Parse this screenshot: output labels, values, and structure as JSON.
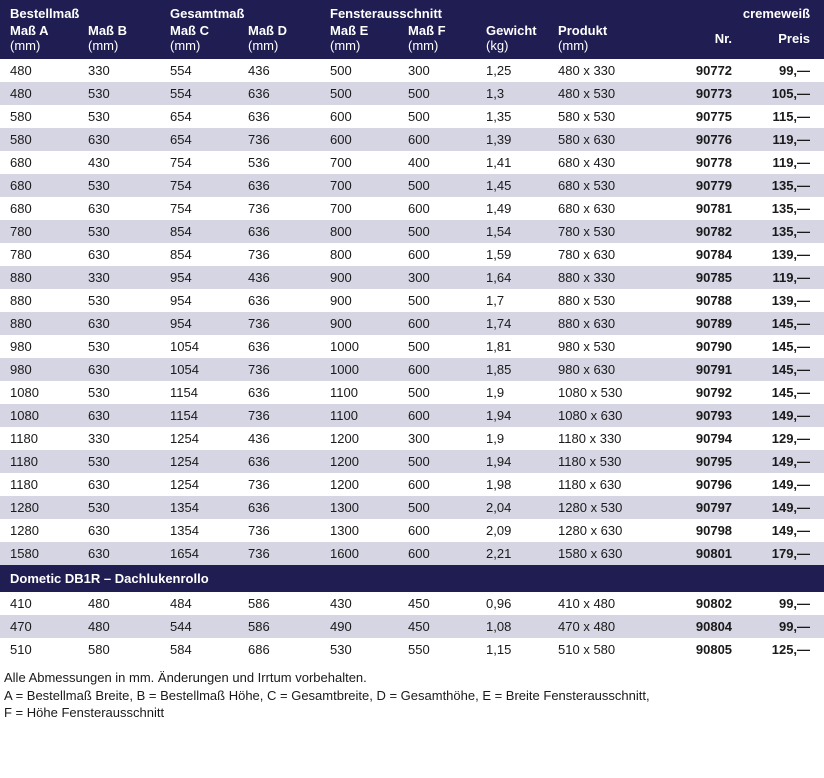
{
  "colors": {
    "header_bg": "#1f1d52",
    "header_text": "#ffffff",
    "row_odd": "#ffffff",
    "row_even": "#d6d5e3",
    "text": "#1a1a1a"
  },
  "groupHeaders": [
    {
      "label": "Bestellmaß",
      "span": 2
    },
    {
      "label": "Gesamtmaß",
      "span": 2
    },
    {
      "label": "Fensterausschnitt",
      "span": 2
    },
    {
      "label": "",
      "span": 2
    },
    {
      "label": "cremeweiß",
      "span": 2,
      "align": "right"
    }
  ],
  "columns": [
    {
      "label": "Maß A",
      "unit": "(mm)",
      "cls": "c-a"
    },
    {
      "label": "Maß B",
      "unit": "(mm)",
      "cls": "c-b"
    },
    {
      "label": "Maß C",
      "unit": "(mm)",
      "cls": "c-c"
    },
    {
      "label": "Maß D",
      "unit": "(mm)",
      "cls": "c-d"
    },
    {
      "label": "Maß E",
      "unit": "(mm)",
      "cls": "c-e"
    },
    {
      "label": "Maß F",
      "unit": "(mm)",
      "cls": "c-f"
    },
    {
      "label": "Gewicht",
      "unit": "(kg)",
      "cls": "c-g"
    },
    {
      "label": "Produkt",
      "unit": "(mm)",
      "cls": "c-p"
    },
    {
      "label": "Nr.",
      "unit": "",
      "cls": "c-nr",
      "align": "right"
    },
    {
      "label": "Preis",
      "unit": "",
      "cls": "c-pr",
      "align": "right"
    }
  ],
  "rows": [
    [
      "480",
      "330",
      "554",
      "436",
      "500",
      "300",
      "1,25",
      "480 x 330",
      "90772",
      "99,—"
    ],
    [
      "480",
      "530",
      "554",
      "636",
      "500",
      "500",
      "1,3",
      "480 x 530",
      "90773",
      "105,—"
    ],
    [
      "580",
      "530",
      "654",
      "636",
      "600",
      "500",
      "1,35",
      "580 x 530",
      "90775",
      "115,—"
    ],
    [
      "580",
      "630",
      "654",
      "736",
      "600",
      "600",
      "1,39",
      "580 x 630",
      "90776",
      "119,—"
    ],
    [
      "680",
      "430",
      "754",
      "536",
      "700",
      "400",
      "1,41",
      "680 x 430",
      "90778",
      "119,—"
    ],
    [
      "680",
      "530",
      "754",
      "636",
      "700",
      "500",
      "1,45",
      "680 x 530",
      "90779",
      "135,—"
    ],
    [
      "680",
      "630",
      "754",
      "736",
      "700",
      "600",
      "1,49",
      "680 x 630",
      "90781",
      "135,—"
    ],
    [
      "780",
      "530",
      "854",
      "636",
      "800",
      "500",
      "1,54",
      "780 x 530",
      "90782",
      "135,—"
    ],
    [
      "780",
      "630",
      "854",
      "736",
      "800",
      "600",
      "1,59",
      "780 x 630",
      "90784",
      "139,—"
    ],
    [
      "880",
      "330",
      "954",
      "436",
      "900",
      "300",
      "1,64",
      "880 x 330",
      "90785",
      "119,—"
    ],
    [
      "880",
      "530",
      "954",
      "636",
      "900",
      "500",
      "1,7",
      "880 x 530",
      "90788",
      "139,—"
    ],
    [
      "880",
      "630",
      "954",
      "736",
      "900",
      "600",
      "1,74",
      "880 x 630",
      "90789",
      "145,—"
    ],
    [
      "980",
      "530",
      "1054",
      "636",
      "1000",
      "500",
      "1,81",
      "980 x 530",
      "90790",
      "145,—"
    ],
    [
      "980",
      "630",
      "1054",
      "736",
      "1000",
      "600",
      "1,85",
      "980 x 630",
      "90791",
      "145,—"
    ],
    [
      "1080",
      "530",
      "1154",
      "636",
      "1100",
      "500",
      "1,9",
      "1080 x 530",
      "90792",
      "145,—"
    ],
    [
      "1080",
      "630",
      "1154",
      "736",
      "1100",
      "600",
      "1,94",
      "1080 x 630",
      "90793",
      "149,—"
    ],
    [
      "1180",
      "330",
      "1254",
      "436",
      "1200",
      "300",
      "1,9",
      "1180 x 330",
      "90794",
      "129,—"
    ],
    [
      "1180",
      "530",
      "1254",
      "636",
      "1200",
      "500",
      "1,94",
      "1180 x 530",
      "90795",
      "149,—"
    ],
    [
      "1180",
      "630",
      "1254",
      "736",
      "1200",
      "600",
      "1,98",
      "1180 x 630",
      "90796",
      "149,—"
    ],
    [
      "1280",
      "530",
      "1354",
      "636",
      "1300",
      "500",
      "2,04",
      "1280 x 530",
      "90797",
      "149,—"
    ],
    [
      "1280",
      "630",
      "1354",
      "736",
      "1300",
      "600",
      "2,09",
      "1280 x 630",
      "90798",
      "149,—"
    ],
    [
      "1580",
      "630",
      "1654",
      "736",
      "1600",
      "600",
      "2,21",
      "1580 x 630",
      "90801",
      "179,—"
    ]
  ],
  "section2": {
    "title": "Dometic DB1R – Dachlukenrollo",
    "rows": [
      [
        "410",
        "480",
        "484",
        "586",
        "430",
        "450",
        "0,96",
        "410 x 480",
        "90802",
        "99,—"
      ],
      [
        "470",
        "480",
        "544",
        "586",
        "490",
        "450",
        "1,08",
        "470 x 480",
        "90804",
        "99,—"
      ],
      [
        "510",
        "580",
        "584",
        "686",
        "530",
        "550",
        "1,15",
        "510 x 580",
        "90805",
        "125,—"
      ]
    ]
  },
  "footnotes": [
    "Alle Abmessungen in mm. Änderungen und Irrtum vorbehalten.",
    "A = Bestellmaß Breite, B = Bestellmaß Höhe, C = Gesamtbreite, D = Gesamthöhe, E = Breite Fensterausschnitt,",
    "F = Höhe Fensterausschnitt"
  ]
}
